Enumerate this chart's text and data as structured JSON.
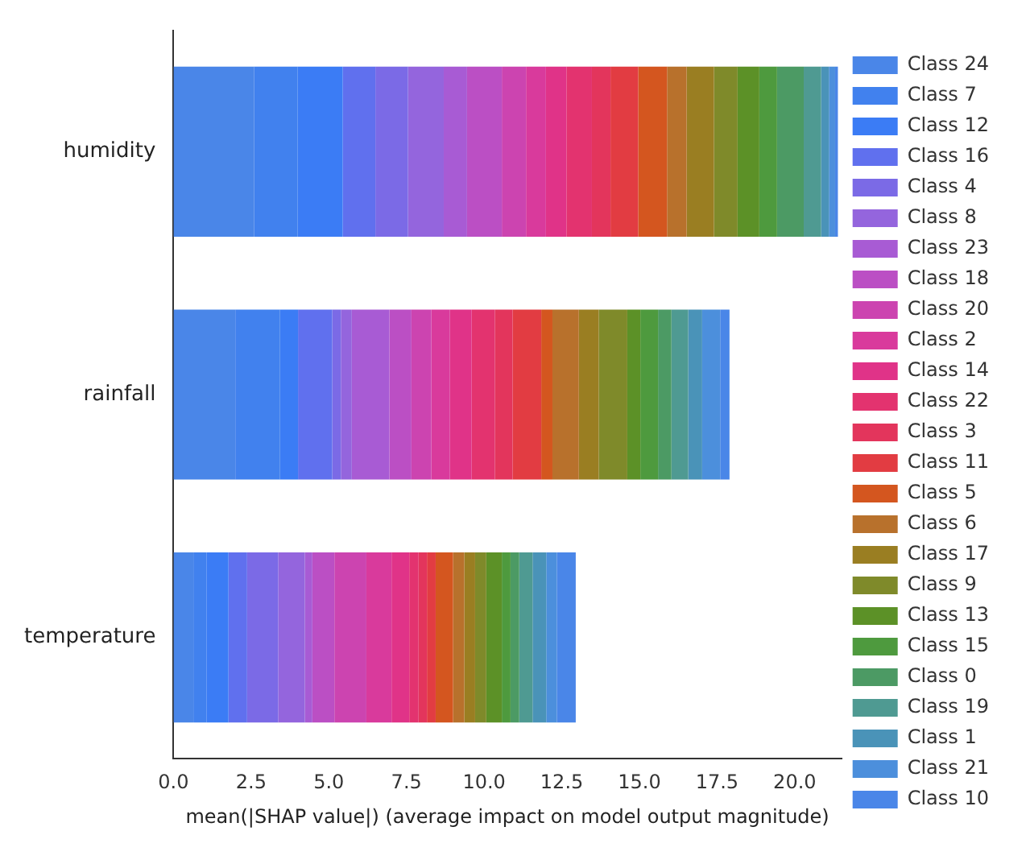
{
  "chart_data": {
    "type": "bar",
    "orientation": "horizontal",
    "stacked": true,
    "xlabel": "mean(|SHAP value|) (average impact on model output magnitude)",
    "categories": [
      "humidity",
      "rainfall",
      "temperature"
    ],
    "xlim": [
      0,
      21.5
    ],
    "xticks": [
      {
        "value": 0,
        "label": "0.0"
      },
      {
        "value": 2.5,
        "label": "2.5"
      },
      {
        "value": 5,
        "label": "5.0"
      },
      {
        "value": 7.5,
        "label": "7.5"
      },
      {
        "value": 10,
        "label": "10.0"
      },
      {
        "value": 12.5,
        "label": "12.5"
      },
      {
        "value": 15,
        "label": "15.0"
      },
      {
        "value": 17.5,
        "label": "17.5"
      },
      {
        "value": 20,
        "label": "20.0"
      }
    ],
    "grid": false,
    "legend": "right",
    "series": [
      {
        "name": "Class 24",
        "color": "#4a86e8",
        "values": [
          2.6,
          1.99,
          0.64
        ]
      },
      {
        "name": "Class 7",
        "color": "#4181ee",
        "values": [
          1.4,
          1.44,
          0.42
        ]
      },
      {
        "name": "Class 12",
        "color": "#3b7cf5",
        "values": [
          1.45,
          0.58,
          0.71
        ]
      },
      {
        "name": "Class 16",
        "color": "#6070ee",
        "values": [
          1.05,
          1.1,
          0.6
        ]
      },
      {
        "name": "Class 4",
        "color": "#7b6ae6",
        "values": [
          1.05,
          0.28,
          1.0
        ]
      },
      {
        "name": "Class 8",
        "color": "#9465dd",
        "values": [
          1.15,
          0.35,
          0.86
        ]
      },
      {
        "name": "Class 23",
        "color": "#a85bd4",
        "values": [
          0.75,
          1.21,
          0.24
        ]
      },
      {
        "name": "Class 18",
        "color": "#bb4fc4",
        "values": [
          1.12,
          0.71,
          0.71
        ]
      },
      {
        "name": "Class 20",
        "color": "#cc44b0",
        "values": [
          0.78,
          0.64,
          1.03
        ]
      },
      {
        "name": "Class 2",
        "color": "#d93a9c",
        "values": [
          0.64,
          0.6,
          0.81
        ]
      },
      {
        "name": "Class 14",
        "color": "#e03388",
        "values": [
          0.66,
          0.7,
          0.57
        ]
      },
      {
        "name": "Class 22",
        "color": "#e3336f",
        "values": [
          0.82,
          0.75,
          0.3
        ]
      },
      {
        "name": "Class 3",
        "color": "#e3355c",
        "values": [
          0.6,
          0.57,
          0.27
        ]
      },
      {
        "name": "Class 11",
        "color": "#e23c42",
        "values": [
          0.89,
          0.92,
          0.28
        ]
      },
      {
        "name": "Class 5",
        "color": "#d4561f",
        "values": [
          0.93,
          0.36,
          0.56
        ]
      },
      {
        "name": "Class 6",
        "color": "#b8712c",
        "values": [
          0.63,
          0.85,
          0.36
        ]
      },
      {
        "name": "Class 17",
        "color": "#9a7e22",
        "values": [
          0.88,
          0.64,
          0.35
        ]
      },
      {
        "name": "Class 9",
        "color": "#7f8a2a",
        "values": [
          0.76,
          0.92,
          0.36
        ]
      },
      {
        "name": "Class 13",
        "color": "#5c9127",
        "values": [
          0.7,
          0.42,
          0.5
        ]
      },
      {
        "name": "Class 15",
        "color": "#4e9a3e",
        "values": [
          0.57,
          0.57,
          0.28
        ]
      },
      {
        "name": "Class 0",
        "color": "#4c9a64",
        "values": [
          0.86,
          0.43,
          0.28
        ]
      },
      {
        "name": "Class 19",
        "color": "#4f9a92",
        "values": [
          0.56,
          0.54,
          0.43
        ]
      },
      {
        "name": "Class 1",
        "color": "#4a93b8",
        "values": [
          0.25,
          0.45,
          0.44
        ]
      },
      {
        "name": "Class 21",
        "color": "#4c8fdc",
        "values": [
          0.2,
          0.58,
          0.34
        ]
      },
      {
        "name": "Class 10",
        "color": "#4a86e8",
        "values": [
          0.09,
          0.3,
          0.61
        ]
      }
    ]
  }
}
